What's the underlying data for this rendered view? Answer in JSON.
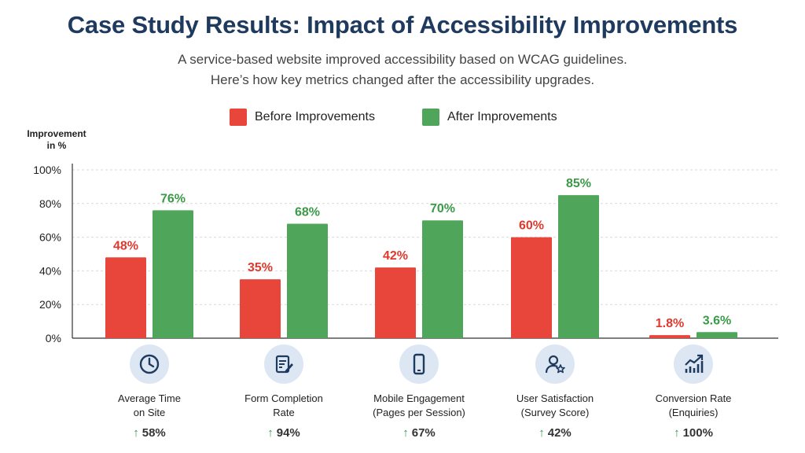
{
  "header": {
    "title": "Case Study Results: Impact of Accessibility Improvements",
    "subtitle_line1": "A service-based website improved accessibility based on WCAG guidelines.",
    "subtitle_line2": "Here’s how key metrics changed after the accessibility upgrades."
  },
  "colors": {
    "before": "#e8463a",
    "after": "#4fa65a",
    "title": "#1f3a5f",
    "gain": "#3a9a47",
    "icon_bg": "#dde7f4",
    "icon_fg": "#1f3a5f"
  },
  "chart_data": {
    "type": "bar",
    "title": "Case Study Results: Impact of Accessibility Improvements",
    "ylabel": "Improvement in %",
    "ylim": [
      0,
      100
    ],
    "yticks": [
      "0%",
      "20%",
      "40%",
      "60%",
      "80%",
      "100%"
    ],
    "grid": true,
    "legend_position": "top-center",
    "categories": [
      "Average Time on Site",
      "Form Completion Rate",
      "Mobile Engagement (Pages per Session)",
      "User Satisfaction (Survey Score)",
      "Conversion Rate (Enquiries)"
    ],
    "series": [
      {
        "name": "Before Improvements",
        "values": [
          48,
          35,
          42,
          60,
          1.8
        ],
        "labels": [
          "48%",
          "35%",
          "42%",
          "60%",
          "1.8%"
        ]
      },
      {
        "name": "After Improvements",
        "values": [
          76,
          68,
          70,
          85,
          3.6
        ],
        "labels": [
          "76%",
          "68%",
          "70%",
          "85%",
          "3.6%"
        ]
      }
    ]
  },
  "categories": [
    {
      "line1": "Average Time",
      "line2": "on Site",
      "gain": "58%",
      "icon": "clock-icon"
    },
    {
      "line1": "Form Completion",
      "line2": "Rate",
      "gain": "94%",
      "icon": "form-edit-icon"
    },
    {
      "line1": "Mobile Engagement",
      "line2": "(Pages per Session)",
      "gain": "67%",
      "icon": "smartphone-icon"
    },
    {
      "line1": "User Satisfaction",
      "line2": "(Survey Score)",
      "gain": "42%",
      "icon": "user-star-icon"
    },
    {
      "line1": "Conversion Rate",
      "line2": "(Enquiries)",
      "gain": "100%",
      "icon": "growth-chart-icon"
    }
  ],
  "gain_arrow": "↑",
  "y_axis_title": {
    "line1": "Improvement",
    "line2": "in %"
  }
}
